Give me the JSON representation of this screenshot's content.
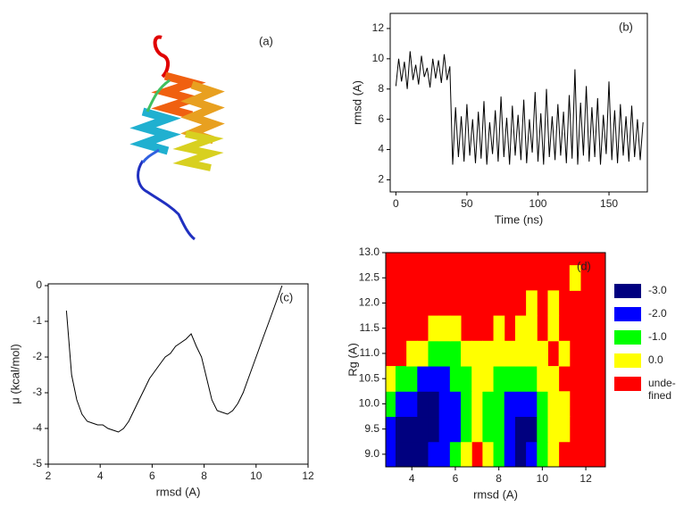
{
  "panel_a": {
    "label": "(a)"
  },
  "chart_data": [
    {
      "type": "line",
      "panel_label": "(b)",
      "x_label": "Time (ns)",
      "y_label": "rmsd (A)",
      "xlim": [
        -4,
        177
      ],
      "ylim": [
        1.2,
        13
      ],
      "xticks": [
        0,
        50,
        100,
        150
      ],
      "yticks": [
        2,
        4,
        6,
        8,
        10,
        12
      ],
      "series": [
        {
          "color": "#000000",
          "x": [
            0,
            2,
            4,
            6,
            8,
            10,
            12,
            14,
            16,
            18,
            20,
            22,
            24,
            26,
            28,
            30,
            32,
            34,
            36,
            38,
            40,
            42,
            44,
            46,
            48,
            50,
            52,
            54,
            56,
            58,
            60,
            62,
            64,
            66,
            68,
            70,
            72,
            74,
            76,
            78,
            80,
            82,
            84,
            86,
            88,
            90,
            92,
            94,
            96,
            98,
            100,
            102,
            104,
            106,
            108,
            110,
            112,
            114,
            116,
            118,
            120,
            122,
            124,
            126,
            128,
            130,
            132,
            134,
            136,
            138,
            140,
            142,
            144,
            146,
            148,
            150,
            152,
            154,
            156,
            158,
            160,
            162,
            164,
            166,
            168,
            170,
            172,
            174
          ],
          "values": [
            8.2,
            10.0,
            8.5,
            9.8,
            8.0,
            10.5,
            8.6,
            9.6,
            8.3,
            10.2,
            8.8,
            9.4,
            8.1,
            10.0,
            8.7,
            9.9,
            8.4,
            10.3,
            8.6,
            9.5,
            3.0,
            6.8,
            3.5,
            6.2,
            3.2,
            7.0,
            3.6,
            6.0,
            3.1,
            6.5,
            3.4,
            7.2,
            3.0,
            5.8,
            3.7,
            6.6,
            3.2,
            7.5,
            3.5,
            6.1,
            3.0,
            6.9,
            3.6,
            6.3,
            3.3,
            7.3,
            3.1,
            6.0,
            3.8,
            7.8,
            3.2,
            6.4,
            3.0,
            8.0,
            3.5,
            6.2,
            3.3,
            7.0,
            3.6,
            6.5,
            3.1,
            7.6,
            3.4,
            9.3,
            3.0,
            7.1,
            3.6,
            8.2,
            3.2,
            6.8,
            3.5,
            7.4,
            3.0,
            6.3,
            3.7,
            8.5,
            3.3,
            6.6,
            3.1,
            7.0,
            3.6,
            6.2,
            3.2,
            6.9,
            3.5,
            6.0,
            3.3,
            5.8
          ]
        }
      ]
    },
    {
      "type": "line",
      "panel_label": "(c)",
      "x_label": "rmsd (A)",
      "y_label": "μ (kcal/mol)",
      "xlim": [
        2,
        12
      ],
      "ylim": [
        -5,
        0.05
      ],
      "xticks": [
        2,
        4,
        6,
        8,
        10,
        12
      ],
      "yticks": [
        -5,
        -4,
        -3,
        -2,
        -1,
        0
      ],
      "series": [
        {
          "color": "#000000",
          "x": [
            2.7,
            2.9,
            3.1,
            3.3,
            3.5,
            3.7,
            3.9,
            4.1,
            4.3,
            4.5,
            4.7,
            4.9,
            5.1,
            5.3,
            5.5,
            5.7,
            5.9,
            6.1,
            6.3,
            6.5,
            6.7,
            6.9,
            7.1,
            7.3,
            7.5,
            7.7,
            7.9,
            8.1,
            8.3,
            8.5,
            8.7,
            8.9,
            9.1,
            9.3,
            9.5,
            9.7,
            9.9,
            10.1,
            10.3,
            10.5,
            10.7,
            10.9,
            11.0
          ],
          "values": [
            -0.7,
            -2.5,
            -3.2,
            -3.6,
            -3.8,
            -3.85,
            -3.9,
            -3.9,
            -4.0,
            -4.05,
            -4.1,
            -4.0,
            -3.8,
            -3.5,
            -3.2,
            -2.9,
            -2.6,
            -2.4,
            -2.2,
            -2.0,
            -1.9,
            -1.7,
            -1.6,
            -1.5,
            -1.35,
            -1.7,
            -2.0,
            -2.6,
            -3.2,
            -3.5,
            -3.55,
            -3.6,
            -3.5,
            -3.3,
            -3.0,
            -2.6,
            -2.2,
            -1.8,
            -1.4,
            -1.0,
            -0.6,
            -0.2,
            0
          ]
        }
      ]
    },
    {
      "type": "heatmap",
      "panel_label": "(d)",
      "x_label": "rmsd (A)",
      "y_label": "Rg (A)",
      "xlim": [
        2.8,
        12.9
      ],
      "ylim": [
        8.75,
        13
      ],
      "xticks": [
        4,
        6,
        8,
        10,
        12
      ],
      "yticks": [
        {
          "value": 9,
          "label": "9.0"
        },
        9.5,
        {
          "value": 10,
          "label": "10.0"
        },
        10.5,
        {
          "value": 11,
          "label": "11.0"
        },
        11.5,
        {
          "value": 12,
          "label": "12.0"
        },
        12.5,
        {
          "value": 13,
          "label": "13.0"
        }
      ],
      "x": [
        3.0,
        3.5,
        4.0,
        4.5,
        5.0,
        5.5,
        6.0,
        6.5,
        7.0,
        7.5,
        8.0,
        8.5,
        9.0,
        9.5,
        10.0,
        10.5,
        11.0,
        11.5,
        12.0,
        12.5
      ],
      "y": [
        9.0,
        9.5,
        10.0,
        10.5,
        11.0,
        11.5,
        12.0,
        12.5
      ],
      "values": [
        [
          -2,
          -3,
          -3,
          -3,
          -2,
          -2,
          -1,
          0,
          null,
          0,
          -1,
          -2,
          -3,
          -2,
          -1,
          0,
          null,
          null,
          null,
          null
        ],
        [
          -2,
          -3,
          -3,
          -3,
          -3,
          -2,
          -2,
          -1,
          0,
          -1,
          -1,
          -2,
          -3,
          -3,
          -1,
          0,
          0,
          null,
          null,
          null
        ],
        [
          -1,
          -2,
          -2,
          -3,
          -3,
          -2,
          -2,
          -1,
          0,
          -1,
          -1,
          -2,
          -2,
          -2,
          -1,
          0,
          0,
          null,
          null,
          null
        ],
        [
          0,
          -1,
          -1,
          -2,
          -2,
          -2,
          -1,
          -1,
          0,
          0,
          -1,
          -1,
          -1,
          -1,
          0,
          0,
          null,
          null,
          null,
          null
        ],
        [
          null,
          null,
          0,
          0,
          -1,
          -1,
          -1,
          0,
          0,
          0,
          0,
          0,
          0,
          0,
          0,
          null,
          0,
          null,
          null,
          null
        ],
        [
          null,
          null,
          null,
          null,
          0,
          0,
          0,
          null,
          null,
          null,
          0,
          null,
          0,
          0,
          null,
          0,
          null,
          null,
          null,
          null
        ],
        [
          null,
          null,
          null,
          null,
          null,
          null,
          null,
          null,
          null,
          null,
          null,
          null,
          null,
          0,
          null,
          0,
          null,
          null,
          null,
          null
        ],
        [
          null,
          null,
          null,
          null,
          null,
          null,
          null,
          null,
          null,
          null,
          null,
          null,
          null,
          null,
          null,
          null,
          null,
          0,
          null,
          null
        ]
      ],
      "undefined_color": "#ff0000",
      "legend": [
        {
          "value": -3,
          "label": "-3.0",
          "color": "#00007f"
        },
        {
          "value": -2,
          "label": "-2.0",
          "color": "#0000ff"
        },
        {
          "value": -1,
          "label": "-1.0",
          "color": "#00ff00"
        },
        {
          "value": 0,
          "label": "0.0",
          "color": "#ffff00"
        },
        {
          "value": null,
          "label": [
            "unde-",
            "fined"
          ],
          "color": "#ff0000"
        }
      ]
    }
  ]
}
